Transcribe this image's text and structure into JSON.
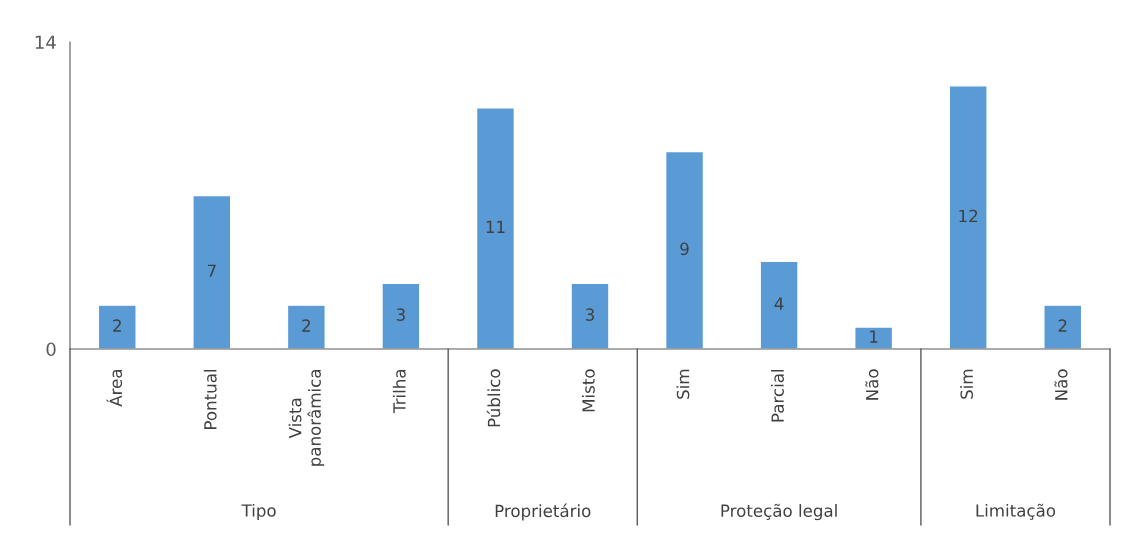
{
  "chart_data": {
    "type": "bar",
    "categories": [
      "Área",
      "Pontual",
      "Vista\npanorâmica",
      "Trilha",
      "Público",
      "Misto",
      "Sim",
      "Parcial",
      "Não",
      "Sim",
      "Não"
    ],
    "values": [
      2,
      7,
      2,
      3,
      11,
      3,
      9,
      4,
      1,
      12,
      2
    ],
    "color": "#5b9bd5",
    "ylim": [
      0,
      14
    ],
    "yticks": [
      0,
      14
    ],
    "grid": false,
    "data_labels": true,
    "annotations": [
      "Tipo",
      "Proprietário",
      "Proteção legal",
      "Limitação"
    ]
  }
}
